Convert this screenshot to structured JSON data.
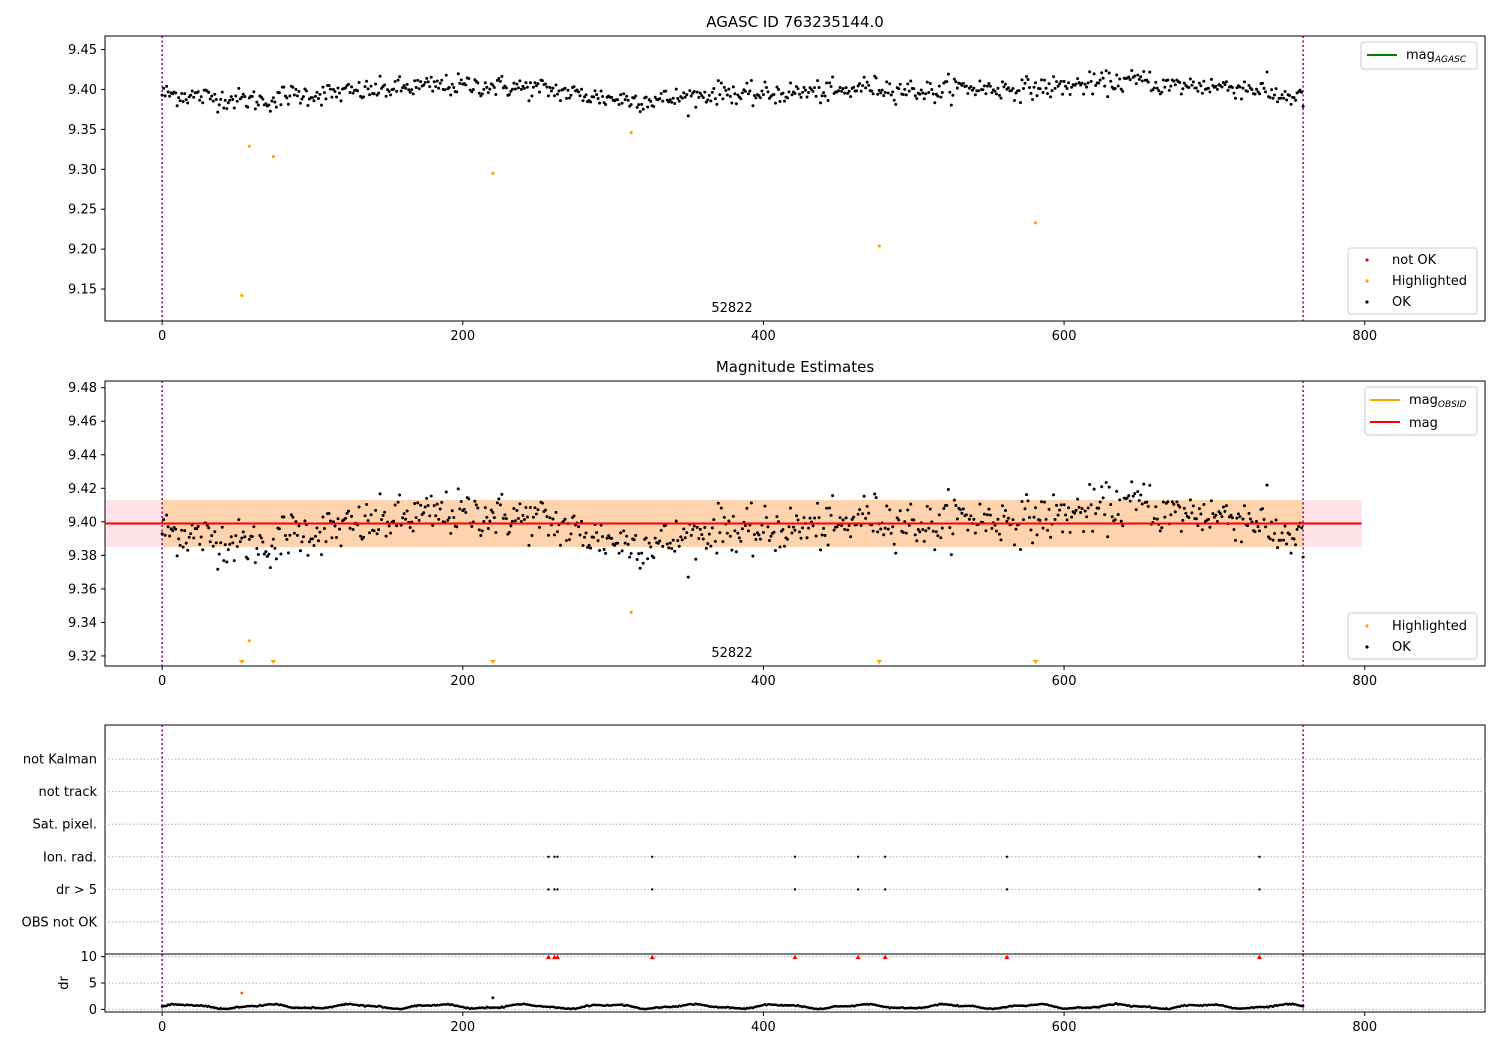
{
  "chart_data": [
    {
      "type": "scatter",
      "title": "AGASC ID 763235144.0",
      "annotation": "52822",
      "xlim": [
        -38,
        880
      ],
      "ylim": [
        9.11,
        9.467
      ],
      "xticks": [
        0,
        200,
        400,
        600,
        800
      ],
      "yticks": [
        9.15,
        9.2,
        9.25,
        9.3,
        9.35,
        9.4,
        9.45
      ],
      "ytick_labels": [
        "9.15",
        "9.20",
        "9.25",
        "9.30",
        "9.35",
        "9.40",
        "9.45"
      ],
      "vlines": [
        0,
        759
      ],
      "line_legend": {
        "label": "mag",
        "sub": "AGASC",
        "color": "#008000"
      },
      "marker_legend": [
        {
          "label": "not OK",
          "color": "#ff0000"
        },
        {
          "label": "Highlighted",
          "color": "#ffa500"
        },
        {
          "label": "OK",
          "color": "#000000"
        }
      ],
      "ok_series": {
        "n": 760,
        "x_start": 0,
        "x_end": 759,
        "mean": 9.399,
        "noise": 0.009
      },
      "highlighted": [
        [
          53,
          9.142
        ],
        [
          58,
          9.329
        ],
        [
          74,
          9.316
        ],
        [
          220,
          9.295
        ],
        [
          312,
          9.346
        ],
        [
          477,
          9.204
        ],
        [
          581,
          9.233
        ]
      ]
    },
    {
      "type": "scatter",
      "title": "Magnitude Estimates",
      "annotation": "52822",
      "xlim": [
        -38,
        880
      ],
      "ylim": [
        9.314,
        9.484
      ],
      "xticks": [
        0,
        200,
        400,
        600,
        800
      ],
      "yticks": [
        9.32,
        9.34,
        9.36,
        9.38,
        9.4,
        9.42,
        9.44,
        9.46,
        9.48
      ],
      "ytick_labels": [
        "9.32",
        "9.34",
        "9.36",
        "9.38",
        "9.40",
        "9.42",
        "9.44",
        "9.46",
        "9.48"
      ],
      "vlines": [
        0,
        759
      ],
      "mag": 9.399,
      "mag_obsid": 9.399,
      "band_mag": [
        9.385,
        9.413,
        -38,
        798
      ],
      "band_obsid": [
        9.385,
        9.413,
        0,
        759
      ],
      "line_legend": [
        {
          "label": "mag",
          "sub": "OBSID",
          "color": "#ffa500"
        },
        {
          "label": "mag",
          "sub": "",
          "color": "#ff0000"
        }
      ],
      "marker_legend": [
        {
          "label": "Highlighted",
          "color": "#ffa500"
        },
        {
          "label": "OK",
          "color": "#000000"
        }
      ],
      "highlighted": [
        [
          58,
          9.329
        ],
        [
          312,
          9.346
        ]
      ],
      "clipped_low": [
        53,
        74,
        220,
        477,
        581
      ]
    },
    {
      "type": "scatter",
      "xlim": [
        -38,
        880
      ],
      "xticks": [
        0,
        200,
        400,
        600,
        800
      ],
      "vlines": [
        0,
        759
      ],
      "flag_labels": [
        "not Kalman",
        "not track",
        "Sat. pixel.",
        "Ion. rad.",
        "dr > 5",
        "OBS not OK"
      ],
      "flag_points": {
        "Ion. rad.": [
          257,
          261,
          263,
          326,
          421,
          463,
          481,
          562,
          730
        ],
        "dr > 5": [
          257,
          261,
          263,
          326,
          421,
          463,
          481,
          562,
          730
        ]
      },
      "dr": {
        "ylabel": "dr",
        "ylim": [
          -0.5,
          10.5
        ],
        "yticks": [
          0,
          5,
          10
        ],
        "clipped_high": [
          257,
          261,
          263,
          326,
          421,
          463,
          481,
          562,
          730
        ],
        "highlighted": [
          [
            53,
            3.1
          ],
          [
            220,
            2.2
          ]
        ]
      }
    }
  ]
}
